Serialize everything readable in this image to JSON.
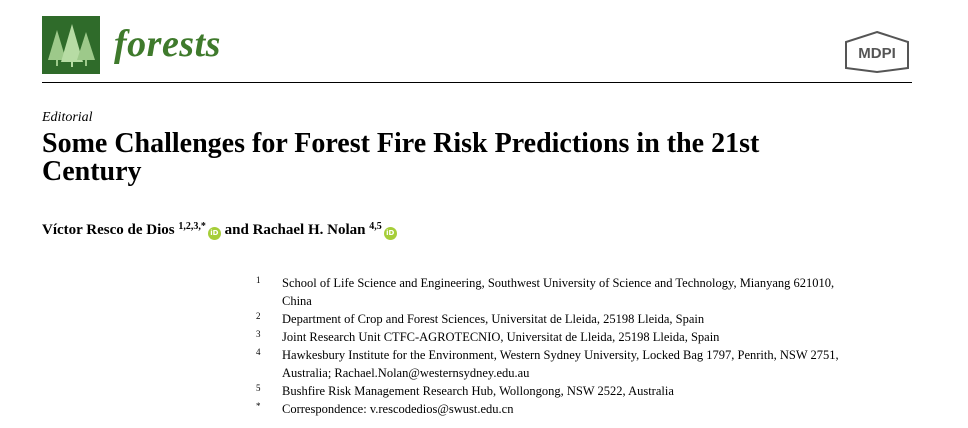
{
  "header": {
    "journal": "forests",
    "publisher": "MDPI"
  },
  "article": {
    "type": "Editorial",
    "title": "Some Challenges for Forest Fire Risk Predictions in the 21st Century"
  },
  "authors": [
    {
      "name": "Víctor Resco de Dios",
      "sup": "1,2,3,*"
    },
    {
      "name": "Rachael H. Nolan",
      "sup": "4,5"
    }
  ],
  "author_connector": "and",
  "affiliations": [
    {
      "num": "1",
      "text": "School of Life Science and Engineering, Southwest University of Science and Technology, Mianyang 621010, China"
    },
    {
      "num": "2",
      "text": "Department of Crop and Forest Sciences, Universitat de Lleida, 25198 Lleida, Spain"
    },
    {
      "num": "3",
      "text": "Joint Research Unit CTFC-AGROTECNIO, Universitat de Lleida, 25198 Lleida, Spain"
    },
    {
      "num": "4",
      "text": "Hawkesbury Institute for the Environment, Western Sydney University, Locked Bag 1797, Penrith, NSW 2751, Australia; Rachael.Nolan@westernsydney.edu.au"
    },
    {
      "num": "5",
      "text": "Bushfire Risk Management Research Hub, Wollongong, NSW 2522, Australia"
    },
    {
      "num": "*",
      "text": "Correspondence: v.rescodedios@swust.edu.cn"
    }
  ],
  "colors": {
    "journal_green": "#3f7a2c",
    "logo_green": "#2f6b2a",
    "orcid_green": "#a6ce39",
    "mdpi_gray": "#555555"
  },
  "icons": [
    "journal-logo-icon",
    "mdpi-logo-icon",
    "orcid-icon"
  ]
}
